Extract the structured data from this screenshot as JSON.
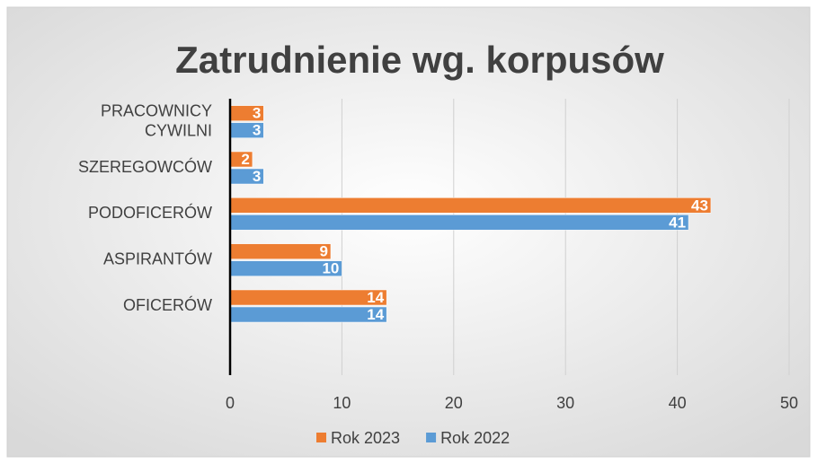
{
  "chart_data": {
    "type": "hbar",
    "title": "Zatrudnienie wg. korpusów",
    "categories": [
      "PRACOWNICY CYWILNI",
      "SZEREGOWCÓW",
      "PODOFICERÓW",
      "ASPIRANTÓW",
      "OFICERÓW",
      null
    ],
    "series": [
      {
        "name": "Rok 2023",
        "color": "#ed7d31",
        "values": [
          3,
          2,
          43,
          9,
          14,
          null
        ]
      },
      {
        "name": "Rok 2022",
        "color": "#5b9bd5",
        "values": [
          3,
          3,
          41,
          10,
          14,
          null
        ]
      }
    ],
    "xlim": [
      0,
      50
    ],
    "xticks": [
      0,
      10,
      20,
      30,
      40,
      50
    ],
    "grid": true,
    "legend": "bottom"
  }
}
